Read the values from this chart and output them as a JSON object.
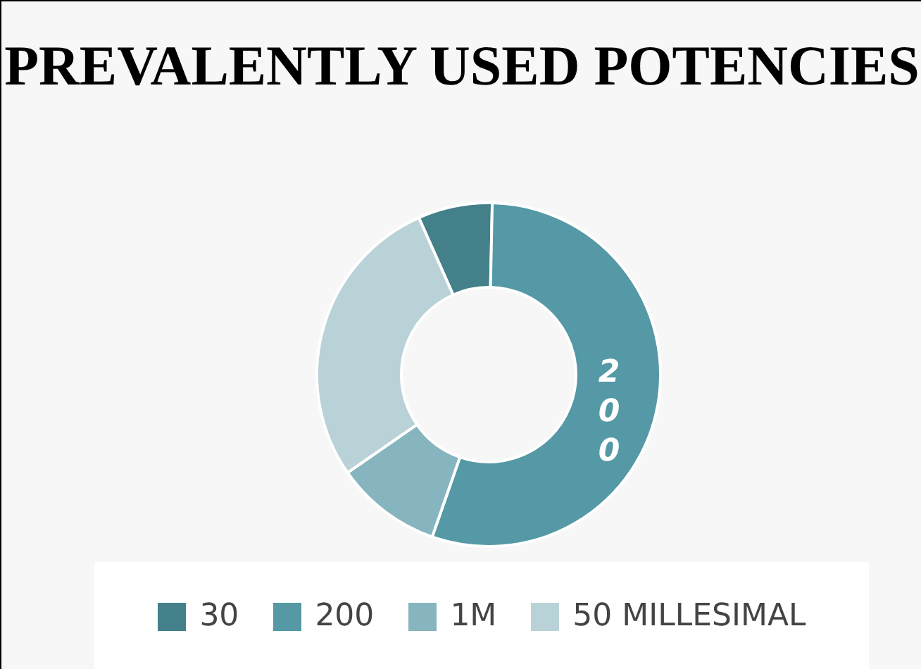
{
  "chart_data": {
    "type": "donut",
    "title": "PREVALENTLY USED POTENCIES",
    "categories": [
      "30",
      "200",
      "1M",
      "50 MILLESIMAL"
    ],
    "values": [
      7,
      55,
      10,
      28
    ],
    "colors": [
      "#44808a",
      "#5499a5",
      "#86b5bf",
      "#b9d2d8"
    ],
    "annotations": [
      {
        "text": "200",
        "x": "200"
      }
    ],
    "legend": "bottom"
  }
}
